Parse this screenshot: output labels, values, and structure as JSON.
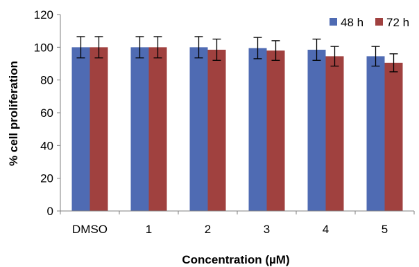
{
  "chart_data": {
    "type": "bar",
    "title": "",
    "xlabel": "Concentration (µM)",
    "ylabel": "% cell proliferation",
    "categories": [
      "DMSO",
      "1",
      "2",
      "3",
      "4",
      "5"
    ],
    "yticks": [
      "0",
      "20",
      "40",
      "60",
      "80",
      "100",
      "120"
    ],
    "ylim": [
      0,
      120
    ],
    "grid": false,
    "legend_position": "top-right",
    "series": [
      {
        "name": "48 h",
        "color": "#4F6BB3",
        "values": [
          100,
          100,
          100,
          99.5,
          98.5,
          94.5
        ],
        "errors": [
          6.5,
          6.5,
          6.5,
          6.5,
          6.5,
          6
        ]
      },
      {
        "name": "72 h",
        "color": "#A0413F",
        "values": [
          100,
          100,
          98.5,
          98,
          94.5,
          90.5
        ],
        "errors": [
          6.5,
          6.5,
          6.5,
          6,
          6,
          5.5
        ]
      }
    ]
  }
}
